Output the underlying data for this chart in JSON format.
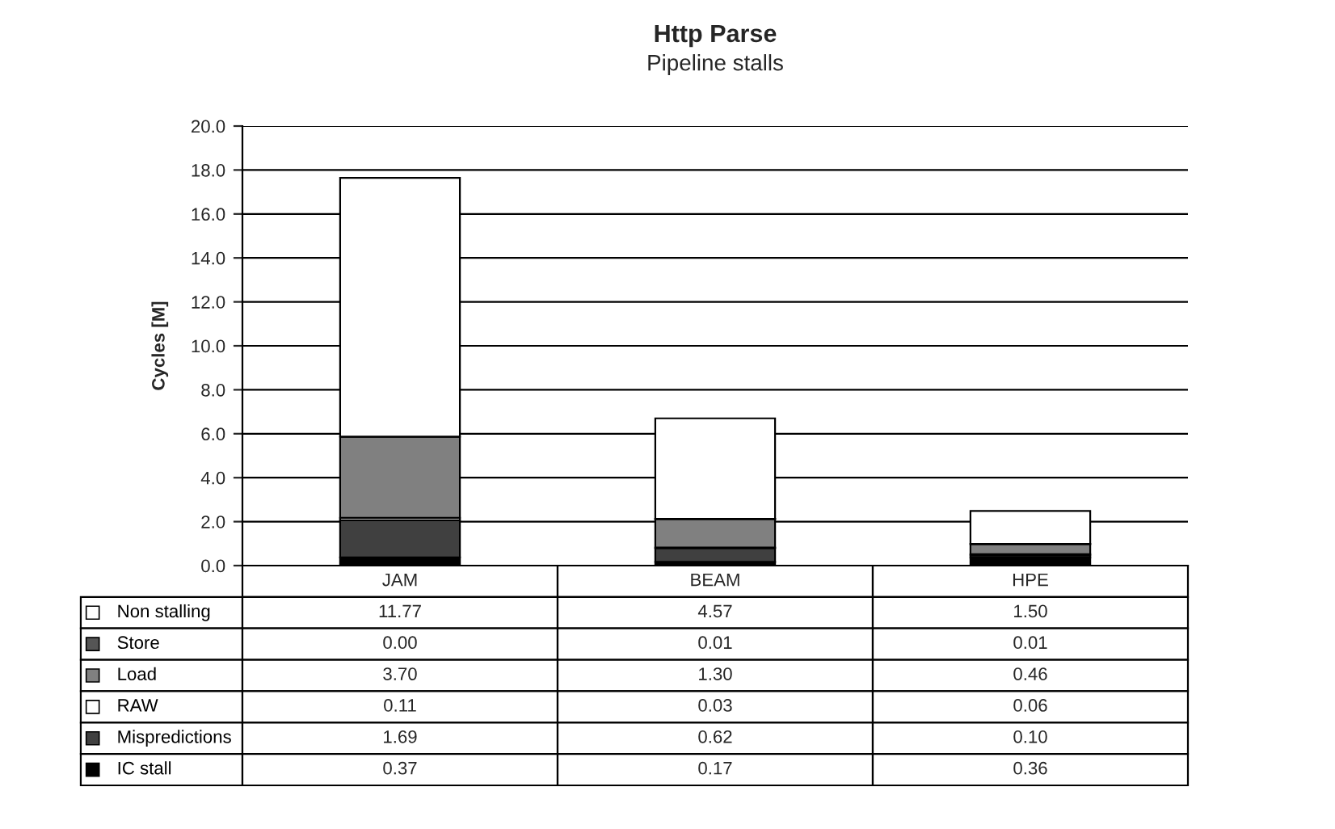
{
  "chart_data": {
    "type": "bar",
    "title": "Http Parse",
    "subtitle": "Pipeline stalls",
    "ylabel": "Cycles [M]",
    "categories": [
      "JAM",
      "BEAM",
      "HPE"
    ],
    "stacked": true,
    "legend": "bottom left",
    "data_labels": true,
    "grid": "y",
    "ylim": [
      0,
      20
    ],
    "yticks": [
      {
        "value": 0,
        "label": "0.0"
      },
      {
        "value": 2,
        "label": "2.0"
      },
      {
        "value": 4,
        "label": "4.0"
      },
      {
        "value": 6,
        "label": "6.0"
      },
      {
        "value": 8,
        "label": "8.0"
      },
      {
        "value": 10,
        "label": "10.0"
      },
      {
        "value": 12,
        "label": "12.0"
      },
      {
        "value": 14,
        "label": "14.0"
      },
      {
        "value": 16,
        "label": "16.0"
      },
      {
        "value": 18,
        "label": "18.0"
      },
      {
        "value": 20,
        "label": "20.0"
      }
    ],
    "series": [
      {
        "name": "IC stall",
        "color": "#000000",
        "values": [
          0.37,
          0.17,
          0.36
        ],
        "value_labels": [
          "0.37",
          "0.17",
          "0.36"
        ]
      },
      {
        "name": "Mispredictions",
        "color": "#404040",
        "values": [
          1.69,
          0.62,
          0.1
        ],
        "value_labels": [
          "1.69",
          "0.62",
          "0.10"
        ]
      },
      {
        "name": "RAW",
        "color": "#ffffff",
        "values": [
          0.11,
          0.03,
          0.06
        ],
        "value_labels": [
          "0.11",
          "0.03",
          "0.06"
        ]
      },
      {
        "name": "Load",
        "color": "#808080",
        "values": [
          3.7,
          1.3,
          0.46
        ],
        "value_labels": [
          "3.70",
          "1.30",
          "0.46"
        ]
      },
      {
        "name": "Store",
        "color": "#555555",
        "values": [
          0,
          0.01,
          0.01
        ],
        "value_labels": [
          "0.00",
          "0.01",
          "0.01"
        ]
      },
      {
        "name": "Non stalling",
        "color": "#ffffff",
        "values": [
          11.77,
          4.57,
          1.5
        ],
        "value_labels": [
          "11.77",
          "4.57",
          "1.50"
        ]
      }
    ]
  }
}
